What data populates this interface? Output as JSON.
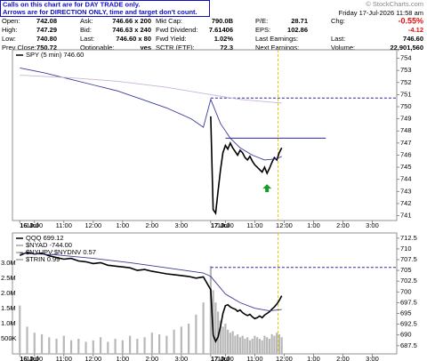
{
  "note": {
    "lines": [
      "Calls on this chart are for DAY TRADE only.",
      "Arrows are for DIRECTION ONLY, time and target don't count."
    ]
  },
  "quote": {
    "rows": [
      [
        {
          "label": "Open:",
          "value": "742.08"
        },
        {
          "label": "Ask:",
          "value": "746.66 x 200"
        },
        {
          "label": "Mkt Cap:",
          "value": "790.0B"
        },
        {
          "label": "P/E:",
          "value": "28.71"
        }
      ],
      [
        {
          "label": "High:",
          "value": "747.29"
        },
        {
          "label": "Bid:",
          "value": "746.63 x 240"
        },
        {
          "label": "Fwd Dividend:",
          "value": "7.61406"
        },
        {
          "label": "EPS:",
          "value": "102.86"
        }
      ],
      [
        {
          "label": "Low:",
          "value": "740.80"
        },
        {
          "label": "Last:",
          "value": "746.60 x 80"
        },
        {
          "label": "Fwd Yield:",
          "value": "1.02%"
        },
        {
          "label": "Last Earnings:"
        }
      ],
      [
        {
          "label": "Prev Close:",
          "value": "750.72"
        },
        {
          "label": "Optionable:",
          "value": "yes"
        },
        {
          "label": "SCTR (ETF):",
          "value": "72.3"
        },
        {
          "label": "Next Earnings:"
        }
      ]
    ],
    "site": "© StockCharts.com",
    "date": "Friday 17-Jul-2026 11:58 am",
    "stats": [
      {
        "label": "Chg:",
        "value": "-0.55%"
      },
      {
        "value": "-4.12"
      },
      {
        "label": "Last:",
        "value": "746.60"
      },
      {
        "label": "Volume:",
        "value": "22,901,560"
      }
    ]
  },
  "chart_data": [
    {
      "type": "line",
      "xlim": [
        -3,
        154
      ],
      "ylim": [
        740.6,
        754.7
      ],
      "yticks": [
        741,
        742,
        743,
        744,
        745,
        746,
        747,
        748,
        749,
        750,
        751,
        752,
        753,
        754
      ],
      "xticks": [
        {
          "value": 0,
          "label": "16 Jul"
        },
        {
          "value": 6,
          "label": "10:00"
        },
        {
          "value": 18,
          "label": "11:00"
        },
        {
          "value": 30,
          "label": "12:00"
        },
        {
          "value": 42,
          "label": "1:00"
        },
        {
          "value": 54,
          "label": "2:00"
        },
        {
          "value": 66,
          "label": "3:00"
        },
        {
          "value": 78,
          "label": "17 Jul"
        },
        {
          "value": 84,
          "label": "10:00"
        },
        {
          "value": 96,
          "label": "11:00"
        },
        {
          "value": 108,
          "label": "12:00"
        },
        {
          "value": 120,
          "label": "1:00"
        },
        {
          "value": 132,
          "label": "2:00"
        },
        {
          "value": 144,
          "label": "3:00"
        }
      ],
      "series": [
        {
          "name": "SPY (5 min) 746.60",
          "color": "#000000",
          "x": [
            78,
            79,
            80,
            81,
            82,
            83,
            84,
            85,
            86,
            87,
            88,
            89,
            90,
            91,
            92,
            93,
            94,
            95,
            96,
            97,
            98,
            99,
            100,
            101,
            102,
            103,
            104,
            105,
            106,
            107
          ],
          "values": [
            749.2,
            741.5,
            741.2,
            743.0,
            744.8,
            746.2,
            746.8,
            746.5,
            747.0,
            746.6,
            746.3,
            746.0,
            746.4,
            746.2,
            745.8,
            745.6,
            745.9,
            745.5,
            745.2,
            745.0,
            744.8,
            744.6,
            745.0,
            744.5,
            744.9,
            745.4,
            745.8,
            745.6,
            746.2,
            746.6
          ]
        },
        {
          "color": "#3b3b9a",
          "x": [
            0,
            10,
            20,
            30,
            40,
            50,
            60,
            70,
            75,
            78,
            82,
            86,
            90,
            95,
            100,
            105,
            107
          ],
          "values": [
            753.2,
            752.8,
            752.3,
            751.8,
            751.3,
            750.6,
            749.9,
            749.0,
            748.3,
            750.6,
            748.6,
            747.4,
            746.6,
            746.0,
            745.6,
            745.7,
            745.9
          ]
        },
        {
          "color": "#c8b4d8",
          "x": [
            0,
            20,
            40,
            60,
            78,
            90,
            107
          ],
          "values": [
            752.6,
            752.4,
            752.1,
            751.6,
            751.0,
            750.6,
            750.3
          ]
        }
      ],
      "hlines": [
        {
          "y": 750.72,
          "x": [
            78,
            154
          ],
          "dash": true,
          "color": "#2a2a9a"
        },
        {
          "y": 747.4,
          "x": [
            84,
            125
          ],
          "dash": false,
          "color": "#2a2a9a"
        }
      ],
      "vline": 105.5,
      "arrow": {
        "x": 101,
        "y": 743.6,
        "color": "#1a9a2a"
      }
    },
    {
      "type": "line",
      "xlim": [
        -3,
        154
      ],
      "ylim": [
        685.6,
        713.7
      ],
      "y2lim": [
        0,
        4000000
      ],
      "yticks": [
        687.5,
        690,
        692.5,
        695,
        697.5,
        700,
        702.5,
        705,
        707.5,
        710,
        712.5
      ],
      "y2ticks": [
        {
          "value": 500000,
          "label": "500K"
        },
        {
          "value": 1000000,
          "label": "1.0M"
        },
        {
          "value": 1500000,
          "label": "1.5M"
        },
        {
          "value": 2000000,
          "label": "2.0M"
        },
        {
          "value": 2500000,
          "label": "2.5M"
        },
        {
          "value": 3000000,
          "label": "3.0M"
        }
      ],
      "xticks": [
        {
          "value": 0,
          "label": "16 Jul"
        },
        {
          "value": 6,
          "label": "10:00"
        },
        {
          "value": 18,
          "label": "11:00"
        },
        {
          "value": 30,
          "label": "12:00"
        },
        {
          "value": 42,
          "label": "1:00"
        },
        {
          "value": 54,
          "label": "2:00"
        },
        {
          "value": 66,
          "label": "3:00"
        },
        {
          "value": 78,
          "label": "17 Jul"
        },
        {
          "value": 84,
          "label": "10:00"
        },
        {
          "value": 96,
          "label": "11:00"
        },
        {
          "value": 108,
          "label": "12:00"
        },
        {
          "value": 120,
          "label": "1:00"
        },
        {
          "value": 132,
          "label": "2:00"
        },
        {
          "value": 144,
          "label": "3:00"
        }
      ],
      "indicators": [
        "$NYAD -744.00",
        "$NYUPV:$NYDNV 0.57",
        "$TRIN 0.99"
      ],
      "series": [
        {
          "type": "bar",
          "axis": "y2",
          "color": "#b8b8b8",
          "x": [
            0,
            3,
            6,
            9,
            12,
            15,
            18,
            21,
            24,
            27,
            30,
            33,
            36,
            39,
            42,
            45,
            48,
            51,
            54,
            57,
            60,
            63,
            66,
            69,
            72,
            75,
            78,
            79,
            80,
            81,
            82,
            83,
            84,
            85,
            86,
            87,
            88,
            89,
            90,
            91,
            92,
            93,
            94,
            95,
            96,
            97,
            98,
            99,
            100,
            101,
            102,
            103,
            104,
            105,
            106,
            107
          ],
          "values": [
            1600000,
            900000,
            700000,
            650000,
            550000,
            500000,
            600000,
            450000,
            500000,
            400000,
            450000,
            550000,
            400000,
            500000,
            450000,
            600000,
            500000,
            550000,
            700000,
            650000,
            600000,
            800000,
            900000,
            1000000,
            1300000,
            1700000,
            2900000,
            2100000,
            1700000,
            1400000,
            1100000,
            900000,
            1000000,
            800000,
            700000,
            750000,
            600000,
            650000,
            550000,
            600000,
            500000,
            550000,
            450000,
            500000,
            600000,
            550000,
            500000,
            450000,
            600000,
            550000,
            500000,
            650000,
            600000,
            700000,
            650000,
            550000
          ]
        },
        {
          "name": "QQQ 699.12",
          "color": "#000000",
          "x": [
            0,
            3,
            6,
            9,
            12,
            15,
            18,
            21,
            24,
            27,
            30,
            33,
            36,
            39,
            42,
            45,
            48,
            51,
            54,
            57,
            60,
            63,
            66,
            69,
            72,
            75,
            78,
            79,
            80,
            81,
            82,
            83,
            84,
            85,
            86,
            87,
            88,
            89,
            90,
            91,
            92,
            93,
            94,
            95,
            96,
            97,
            98,
            99,
            100,
            101,
            102,
            103,
            104,
            105,
            106,
            107
          ],
          "values": [
            708.5,
            709.2,
            708.8,
            709.0,
            708.4,
            708.0,
            707.6,
            707.8,
            707.2,
            707.0,
            706.6,
            706.8,
            706.2,
            706.0,
            705.8,
            705.6,
            705.0,
            705.2,
            704.8,
            704.5,
            704.2,
            704.0,
            703.8,
            703.6,
            703.2,
            703.5,
            700.5,
            690.0,
            688.5,
            689.5,
            692.0,
            695.0,
            696.8,
            697.0,
            696.5,
            696.2,
            696.0,
            695.5,
            695.8,
            695.2,
            694.8,
            694.5,
            694.8,
            694.2,
            693.8,
            694.0,
            694.4,
            694.0,
            694.6,
            695.0,
            695.4,
            696.0,
            696.5,
            697.2,
            698.0,
            699.12
          ]
        },
        {
          "color": "#3b3b9a",
          "x": [
            0,
            15,
            30,
            45,
            60,
            75,
            78,
            84,
            90,
            96,
            102,
            107
          ],
          "values": [
            709.0,
            708.6,
            707.8,
            706.8,
            705.6,
            704.4,
            703.6,
            699.5,
            697.5,
            696.2,
            695.6,
            695.9
          ]
        }
      ],
      "hlines": [
        {
          "y": 705.7,
          "x": [
            78,
            154
          ],
          "dash": true,
          "color": "#2a2a9a"
        }
      ],
      "vline": 105.5
    }
  ]
}
